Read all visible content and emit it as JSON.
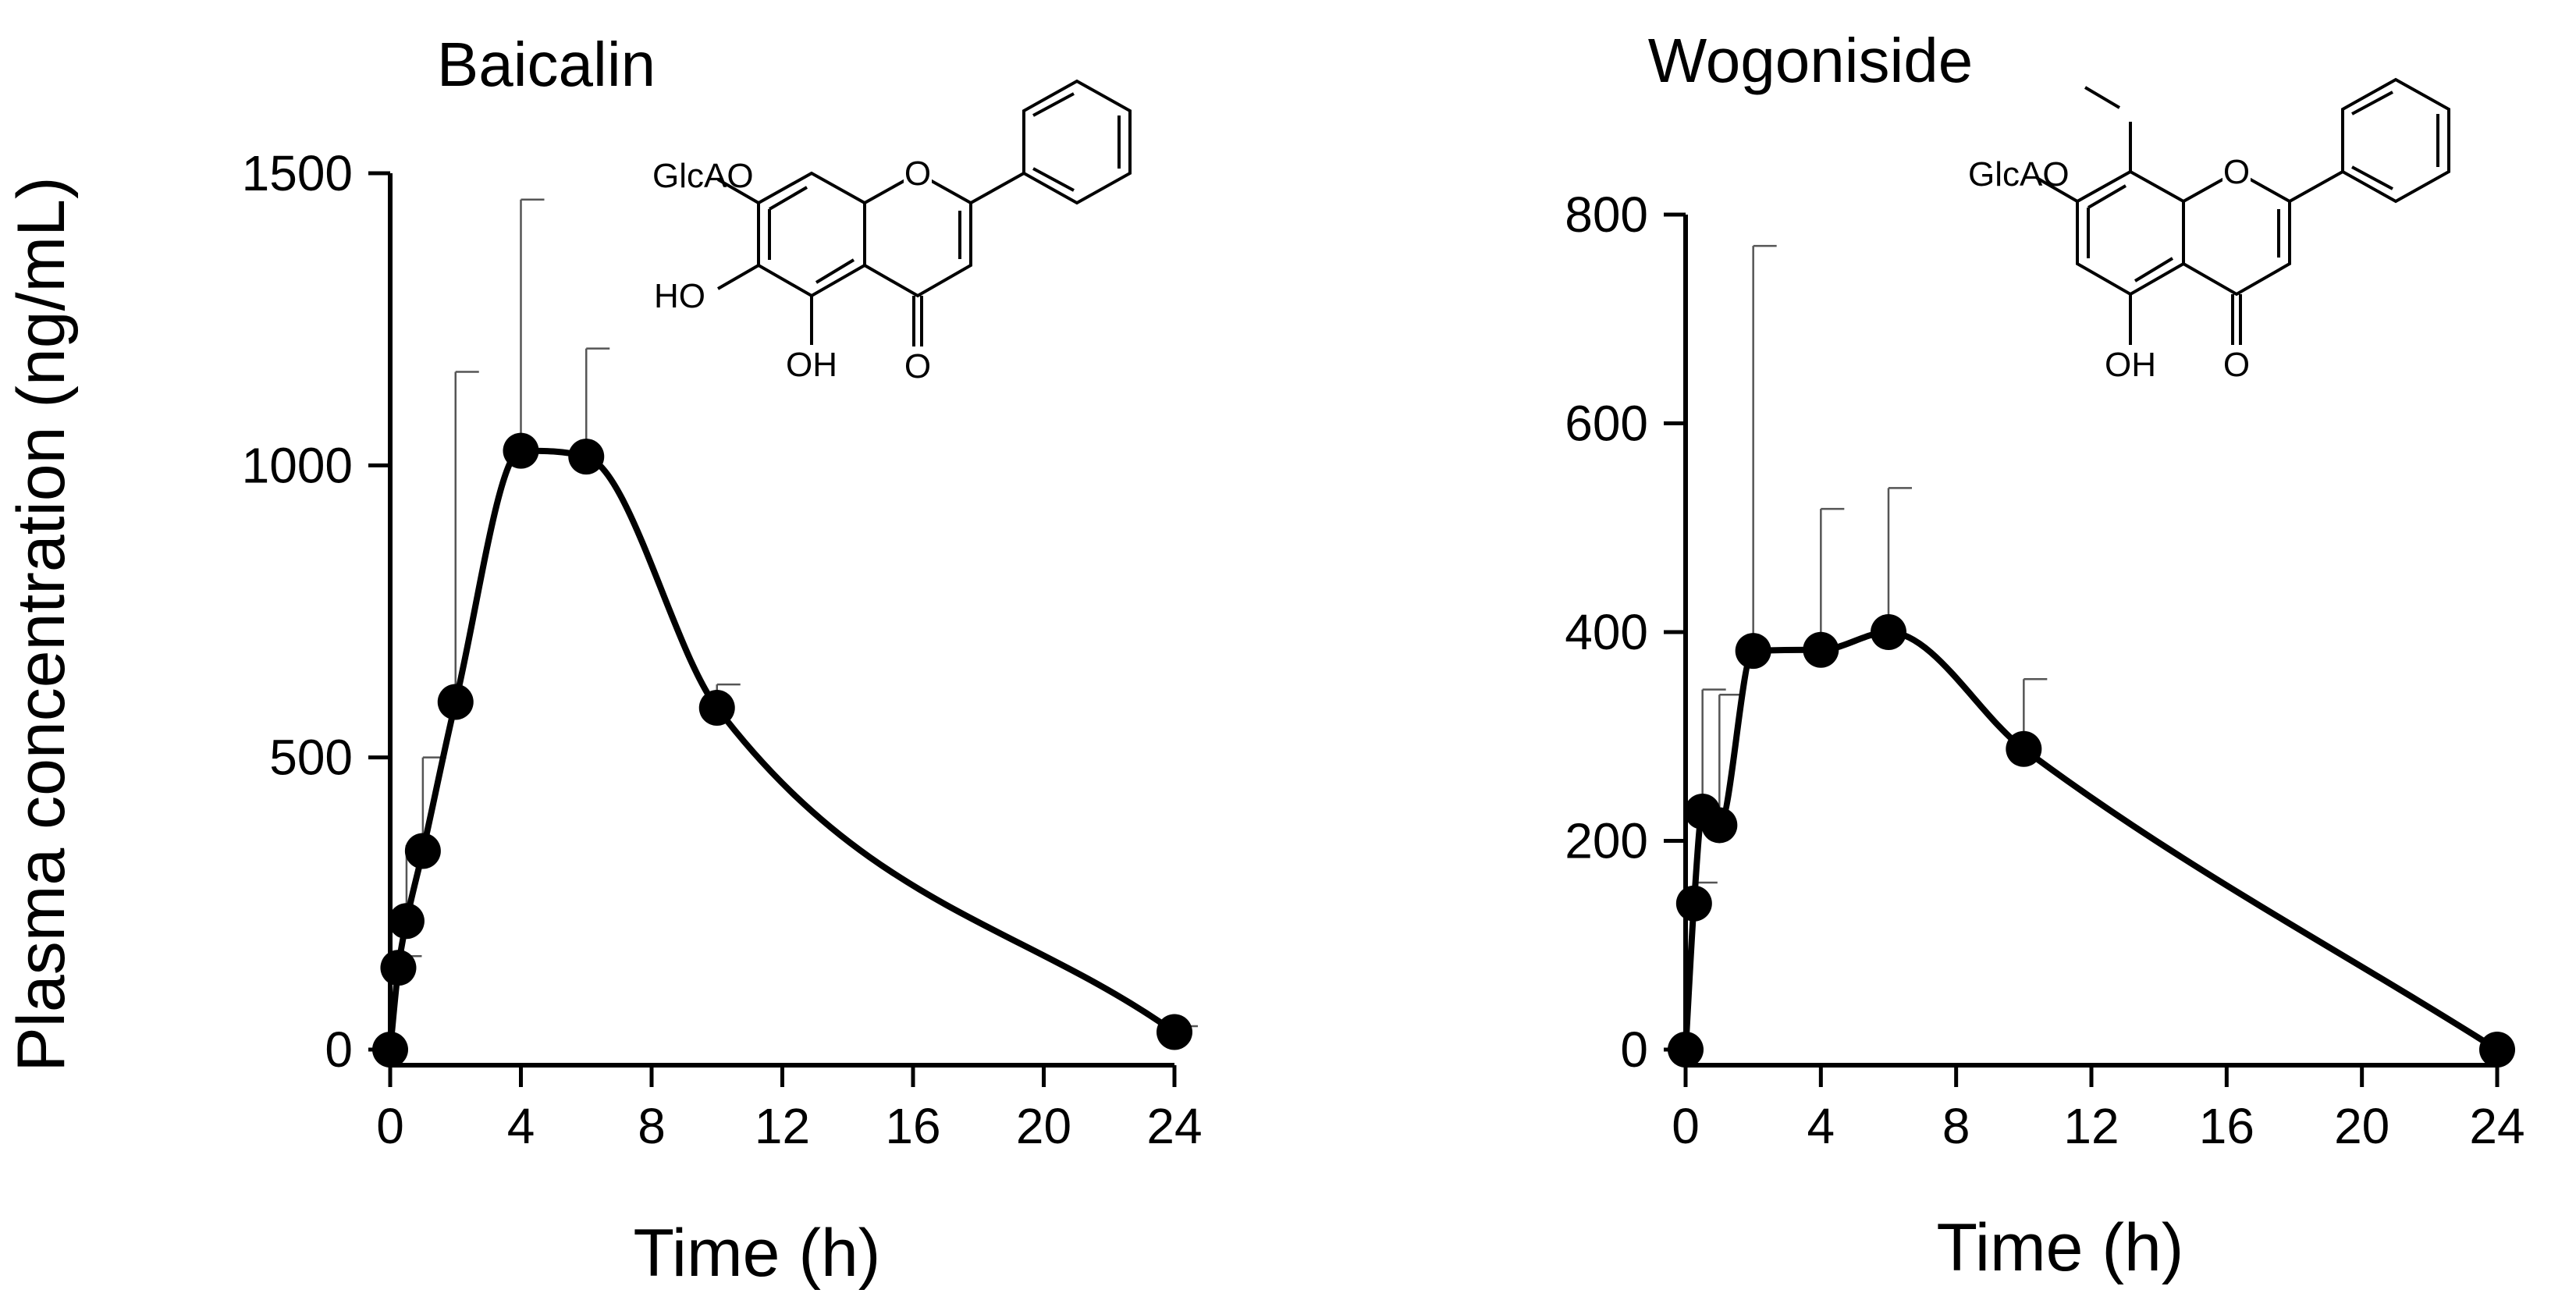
{
  "y_axis_title": "Plasma concentration (ng/mL)",
  "chart_data": [
    {
      "type": "line",
      "title": "Baicalin",
      "xlabel": "Time (h)",
      "ylabel": "Plasma concentration (ng/mL)",
      "xlim": [
        0,
        24
      ],
      "ylim": [
        0,
        1500
      ],
      "xticks": [
        "0",
        "4",
        "8",
        "12",
        "16",
        "20",
        "24"
      ],
      "yticks": [
        "0",
        "500",
        "1000",
        "1500"
      ],
      "grid": false,
      "series": [
        {
          "x": [
            0,
            0.25,
            0.5,
            1,
            2,
            4,
            6,
            10,
            24
          ],
          "y": [
            0,
            140,
            220,
            340,
            595,
            1025,
            1015,
            585,
            30
          ],
          "error_upper": [
            0,
            160,
            350,
            500,
            1160,
            1455,
            1200,
            625,
            40
          ]
        }
      ],
      "structure_labels": [
        "GlcAO",
        "O",
        "HO",
        "OH",
        "O"
      ]
    },
    {
      "type": "line",
      "title": "Wogoniside",
      "xlabel": "Time (h)",
      "ylabel": "",
      "xlim": [
        0,
        24
      ],
      "ylim": [
        0,
        800
      ],
      "xticks": [
        "0",
        "4",
        "8",
        "12",
        "16",
        "20",
        "24"
      ],
      "yticks": [
        "0",
        "200",
        "400",
        "600",
        "800"
      ],
      "grid": false,
      "series": [
        {
          "x": [
            0,
            0.25,
            0.5,
            1,
            2,
            4,
            6,
            10,
            24
          ],
          "y": [
            0,
            140,
            228,
            215,
            382,
            383,
            400,
            288,
            0
          ],
          "error_upper": [
            0,
            160,
            345,
            340,
            770,
            518,
            538,
            355,
            0
          ]
        }
      ],
      "structure_labels": [
        "GlcAO",
        "O",
        "OH",
        "O"
      ]
    }
  ]
}
